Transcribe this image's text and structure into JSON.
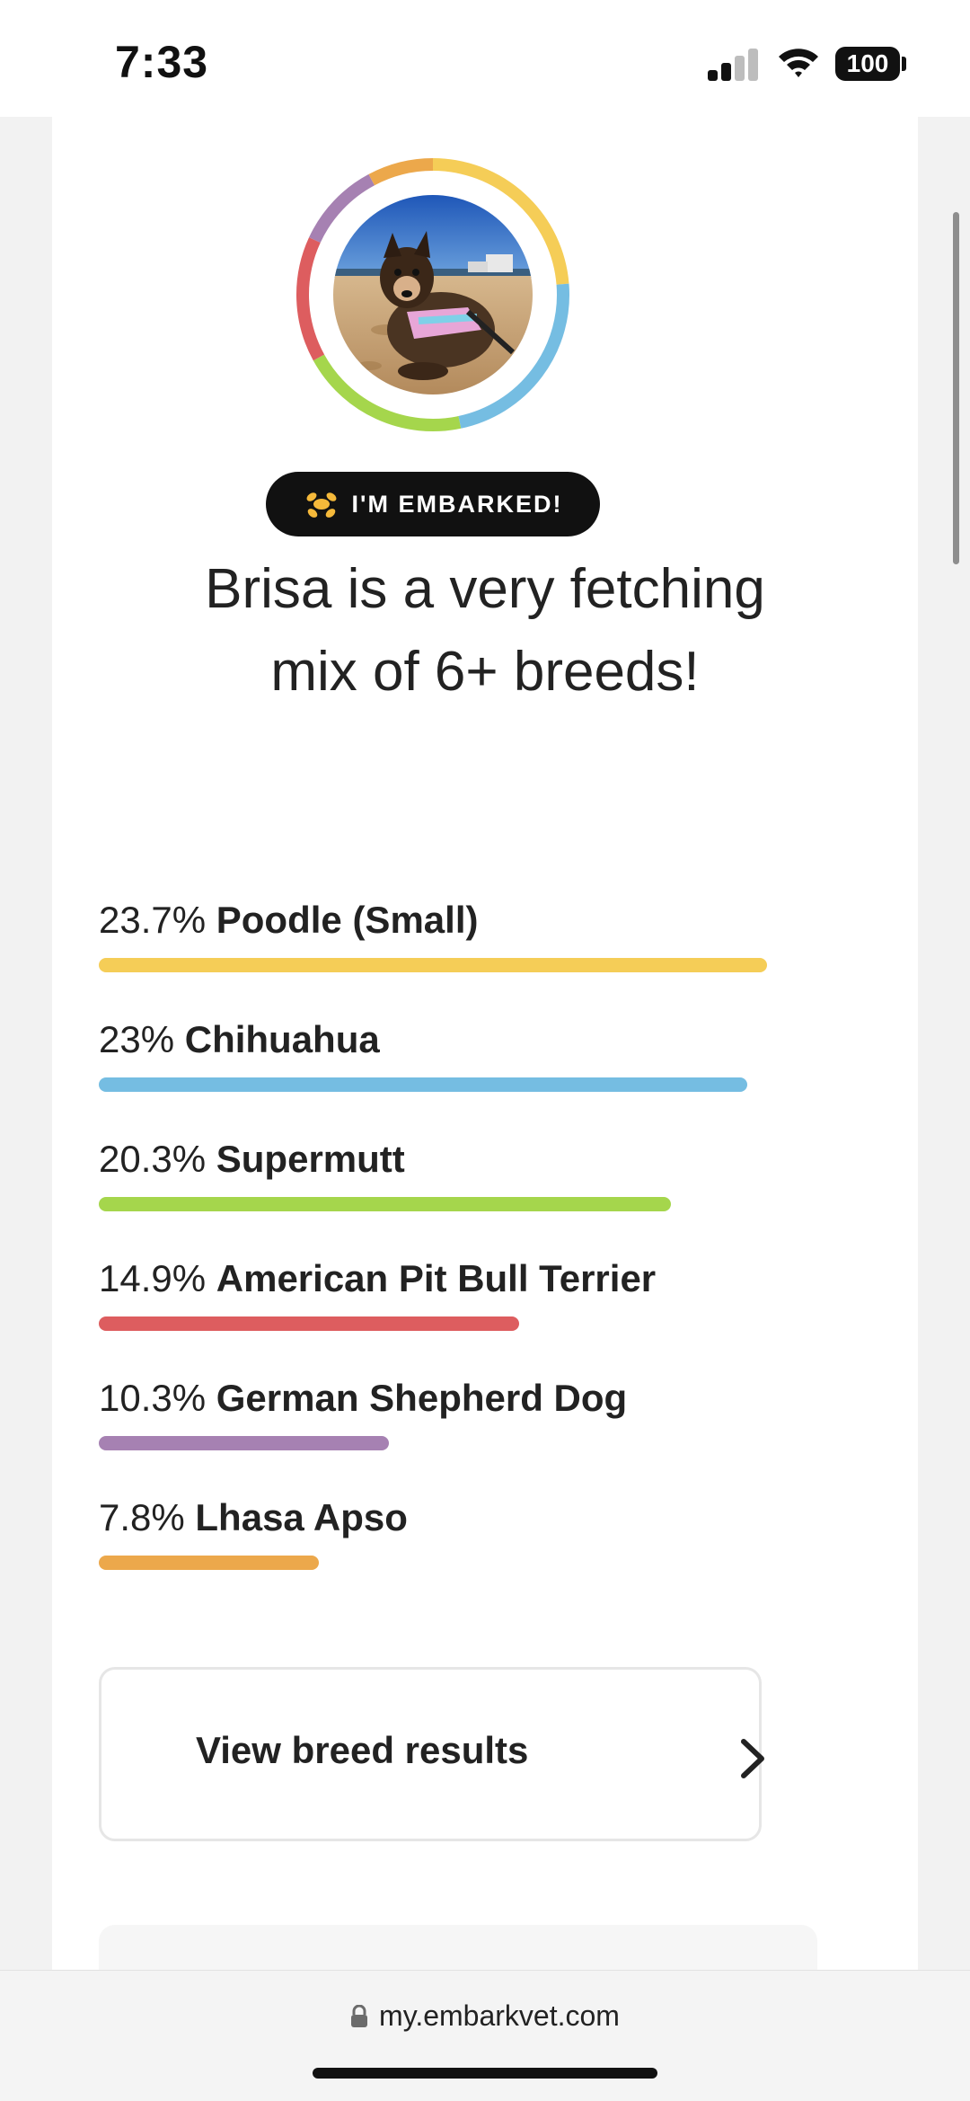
{
  "status_bar": {
    "time": "7:33",
    "battery": "100"
  },
  "badge": {
    "text": "I'M EMBARKED!",
    "icon": "dog-balloon-icon"
  },
  "headline": {
    "line1": "Brisa is a very fetching",
    "line2": "mix of 6+ breeds!"
  },
  "breeds": [
    {
      "pct": "23.7%",
      "name": "Poodle (Small)",
      "value": 23.7,
      "color": "#f5cd57"
    },
    {
      "pct": "23%",
      "name": "Chihuahua",
      "value": 23.0,
      "color": "#75bde2"
    },
    {
      "pct": "20.3%",
      "name": "Supermutt",
      "value": 20.3,
      "color": "#a5d64c"
    },
    {
      "pct": "14.9%",
      "name": "American Pit Bull Terrier",
      "value": 14.9,
      "color": "#dd5d5f"
    },
    {
      "pct": "10.3%",
      "name": "German Shepherd Dog",
      "value": 10.3,
      "color": "#a681b2"
    },
    {
      "pct": "7.8%",
      "name": "Lhasa Apso",
      "value": 7.8,
      "color": "#eca84b"
    }
  ],
  "results_button": {
    "label": "View breed results",
    "icon": "chevron-right-icon"
  },
  "browser": {
    "url": "my.embarkvet.com",
    "icon": "lock-icon"
  }
}
